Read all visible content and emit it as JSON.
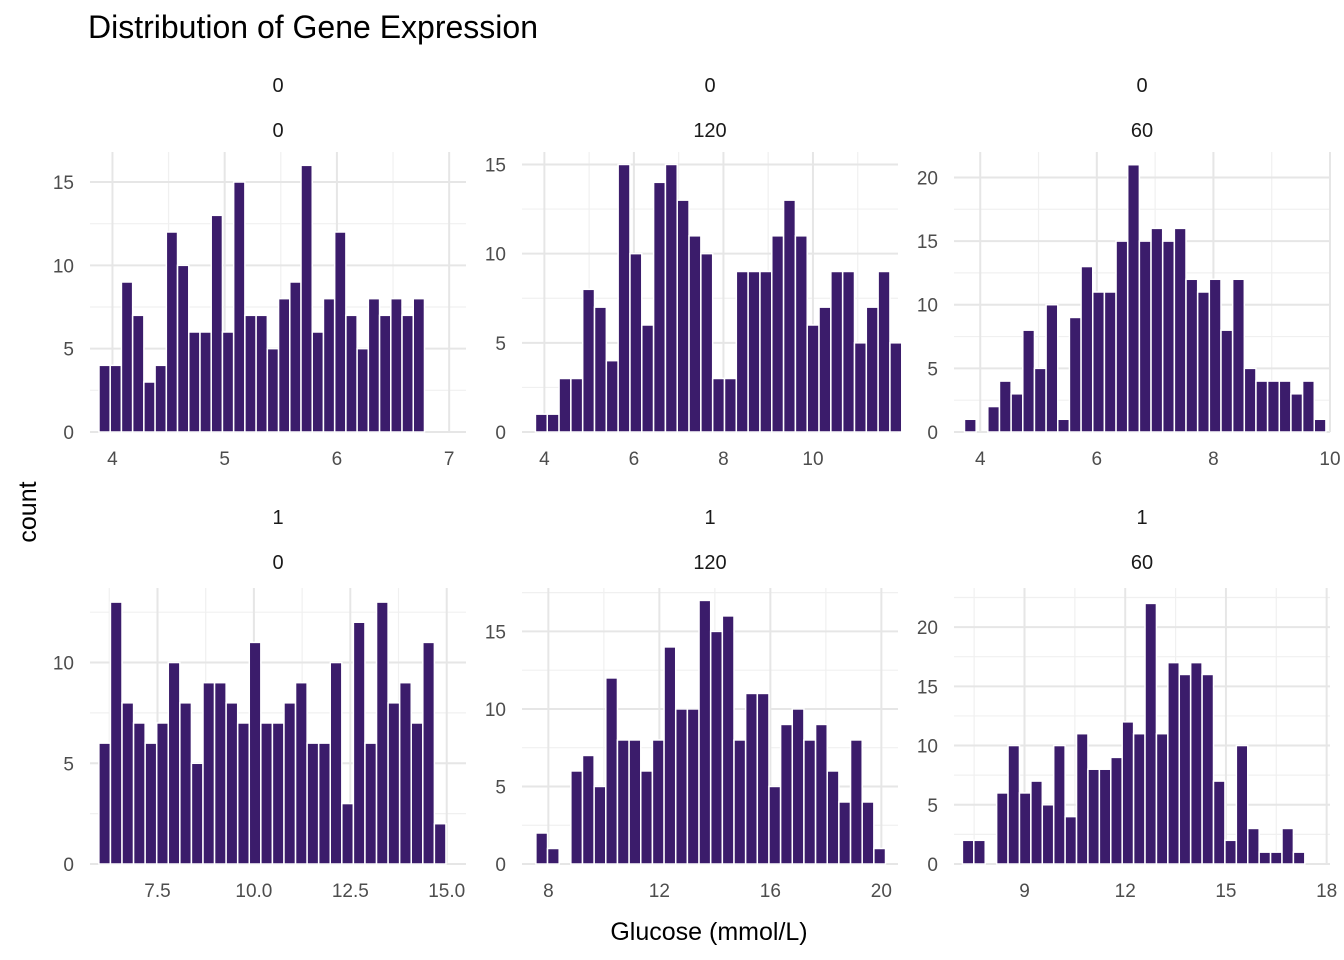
{
  "title": "Distribution of Gene Expression",
  "xlabel": "Glucose (mmol/L)",
  "ylabel": "count",
  "bar_color": "#3B1C6B",
  "chart_data": [
    {
      "type": "bar",
      "strip_top": "0",
      "strip_bottom": "0",
      "bin_start": 3.88,
      "bin_width": 0.1,
      "values": [
        4,
        4,
        9,
        7,
        3,
        4,
        12,
        10,
        6,
        6,
        13,
        6,
        15,
        7,
        7,
        5,
        8,
        9,
        16,
        6,
        8,
        12,
        7,
        5,
        8,
        7,
        8,
        7,
        8
      ],
      "xlim": [
        3.8,
        7.15
      ],
      "ylim": [
        0,
        16.8
      ],
      "xticks": [
        4,
        5,
        6,
        7
      ],
      "xtick_labels": [
        "4",
        "5",
        "6",
        "7"
      ],
      "yticks": [
        0,
        5,
        10,
        15
      ],
      "ytick_labels": [
        "0",
        "5",
        "10",
        "15"
      ]
    },
    {
      "type": "bar",
      "strip_top": "0",
      "strip_bottom": "120",
      "bin_start": 3.8,
      "bin_width": 0.264,
      "values": [
        1,
        1,
        3,
        3,
        8,
        7,
        4,
        15,
        10,
        6,
        14,
        15,
        13,
        11,
        10,
        3,
        3,
        9,
        9,
        9,
        11,
        13,
        11,
        6,
        7,
        9,
        9,
        5,
        7,
        9,
        5
      ],
      "xlim": [
        3.5,
        11.9
      ],
      "ylim": [
        0,
        15.7
      ],
      "xticks": [
        4,
        6,
        8,
        10
      ],
      "xtick_labels": [
        "4",
        "6",
        "8",
        "10"
      ],
      "yticks": [
        0,
        5,
        10,
        15
      ],
      "ytick_labels": [
        "0",
        "5",
        "10",
        "15"
      ]
    },
    {
      "type": "bar",
      "strip_top": "0",
      "strip_bottom": "60",
      "bin_start": 3.73,
      "bin_width": 0.2,
      "values": [
        1,
        0,
        2,
        4,
        3,
        8,
        5,
        10,
        1,
        9,
        13,
        11,
        11,
        15,
        21,
        15,
        16,
        15,
        16,
        12,
        11,
        12,
        8,
        12,
        5,
        4,
        4,
        4,
        3,
        4,
        1
      ],
      "xlim": [
        3.55,
        10.0
      ],
      "ylim": [
        0,
        22
      ],
      "xticks": [
        4,
        6,
        8,
        10
      ],
      "xtick_labels": [
        "4",
        "6",
        "8",
        "10"
      ],
      "yticks": [
        0,
        5,
        10,
        15,
        20
      ],
      "ytick_labels": [
        "0",
        "5",
        "10",
        "15",
        "20"
      ]
    },
    {
      "type": "bar",
      "strip_top": "1",
      "strip_bottom": "0",
      "bin_start": 5.98,
      "bin_width": 0.3,
      "values": [
        6,
        13,
        8,
        7,
        6,
        7,
        10,
        8,
        5,
        9,
        9,
        8,
        7,
        11,
        7,
        7,
        8,
        9,
        6,
        6,
        10,
        3,
        12,
        6,
        13,
        8,
        9,
        7,
        11,
        2
      ],
      "xlim": [
        5.75,
        15.5
      ],
      "ylim": [
        0,
        13.7
      ],
      "xticks": [
        7.5,
        10,
        12.5,
        15
      ],
      "xtick_labels": [
        "7.5",
        "10.0",
        "12.5",
        "15.0"
      ],
      "yticks": [
        0,
        5,
        10
      ],
      "ytick_labels": [
        "0",
        "5",
        "10"
      ]
    },
    {
      "type": "bar",
      "strip_top": "1",
      "strip_bottom": "120",
      "bin_start": 7.55,
      "bin_width": 0.42,
      "values": [
        2,
        1,
        0,
        6,
        7,
        5,
        12,
        8,
        8,
        6,
        8,
        14,
        10,
        10,
        17,
        15,
        16,
        8,
        11,
        11,
        5,
        9,
        10,
        8,
        9,
        6,
        4,
        8,
        4,
        1
      ],
      "xlim": [
        7.05,
        20.6
      ],
      "ylim": [
        0,
        17.8
      ],
      "xticks": [
        8,
        12,
        16,
        20
      ],
      "xtick_labels": [
        "8",
        "12",
        "16",
        "20"
      ],
      "yticks": [
        0,
        5,
        10,
        15
      ],
      "ytick_labels": [
        "0",
        "5",
        "10",
        "15"
      ]
    },
    {
      "type": "bar",
      "strip_top": "1",
      "strip_bottom": "60",
      "bin_start": 7.15,
      "bin_width": 0.34,
      "values": [
        2,
        2,
        0,
        6,
        10,
        6,
        7,
        5,
        10,
        4,
        11,
        8,
        8,
        9,
        12,
        11,
        22,
        11,
        17,
        16,
        17,
        16,
        7,
        2,
        10,
        3,
        1,
        1,
        3,
        1
      ],
      "xlim": [
        6.9,
        18.1
      ],
      "ylim": [
        0,
        23.3
      ],
      "xticks": [
        9,
        12,
        15,
        18
      ],
      "xtick_labels": [
        "9",
        "12",
        "15",
        "18"
      ],
      "yticks": [
        0,
        5,
        10,
        15,
        20
      ],
      "ytick_labels": [
        "0",
        "5",
        "10",
        "15",
        "20"
      ]
    }
  ]
}
